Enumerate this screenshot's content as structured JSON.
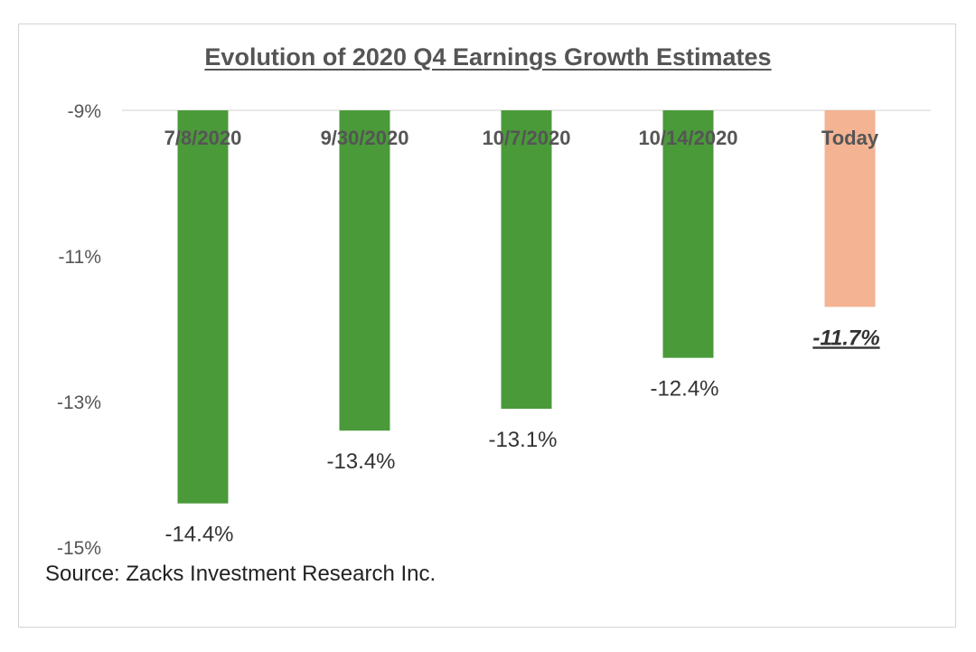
{
  "chart_data": {
    "type": "bar",
    "title": "Evolution of 2020 Q4 Earnings Growth Estimates",
    "categories": [
      "7/8/2020",
      "9/30/2020",
      "10/7/2020",
      "10/14/2020",
      "Today"
    ],
    "values": [
      -14.4,
      -13.4,
      -13.1,
      -12.4,
      -11.7
    ],
    "value_labels": [
      "-14.4%",
      "-13.4%",
      "-13.1%",
      "-12.4%",
      "-11.7%"
    ],
    "highlight_index": 4,
    "yticks": [
      -9,
      -11,
      -13,
      -15
    ],
    "ytick_labels": [
      "-9%",
      "-11%",
      "-13%",
      "-15%"
    ],
    "ylim": [
      -15,
      -9
    ],
    "xlabel": "",
    "ylabel": "",
    "grid": false,
    "colors": {
      "bar": "#4a9a3a",
      "highlight": "#f4b393",
      "baseline": "#d0d0d0"
    }
  },
  "source": "Source: Zacks Investment Research Inc."
}
